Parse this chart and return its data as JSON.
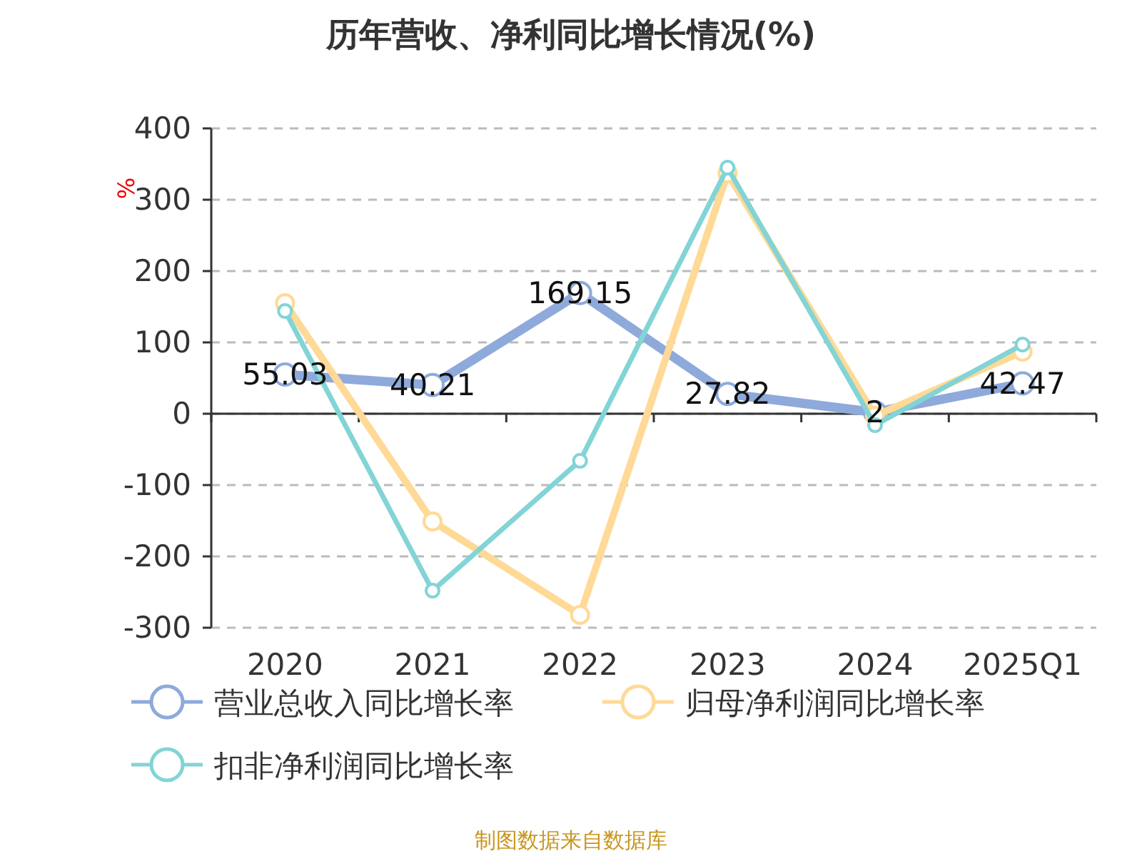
{
  "chart_data": {
    "type": "line",
    "title": "历年营收、净利同比增长情况(%)",
    "ylabel": "%",
    "categories": [
      "2020",
      "2021",
      "2022",
      "2023",
      "2024",
      "2025Q1"
    ],
    "series": [
      {
        "name": "营业总收入同比增长率",
        "color": "#8eaadb",
        "values": [
          55.03,
          40.21,
          169.15,
          27.82,
          2,
          42.47
        ],
        "value_labels": [
          "55.03",
          "40.21",
          "169.15",
          "27.82",
          "2",
          "42.47"
        ]
      },
      {
        "name": "归母净利润同比增长率",
        "color": "#ffd996",
        "values": [
          155,
          -151,
          -282,
          337,
          -3,
          87
        ]
      },
      {
        "name": "扣非净利润同比增长率",
        "color": "#82d4d6",
        "values": [
          144,
          -248,
          -66,
          345,
          -16,
          97
        ]
      }
    ],
    "ylim": [
      -300,
      400
    ],
    "yticks": [
      -300,
      -200,
      -100,
      0,
      100,
      200,
      300,
      400
    ],
    "grid": "y",
    "legend": "bottom",
    "marker": "circle",
    "line_style": "solid",
    "annotations": [
      "制图数据来自数据库"
    ]
  }
}
